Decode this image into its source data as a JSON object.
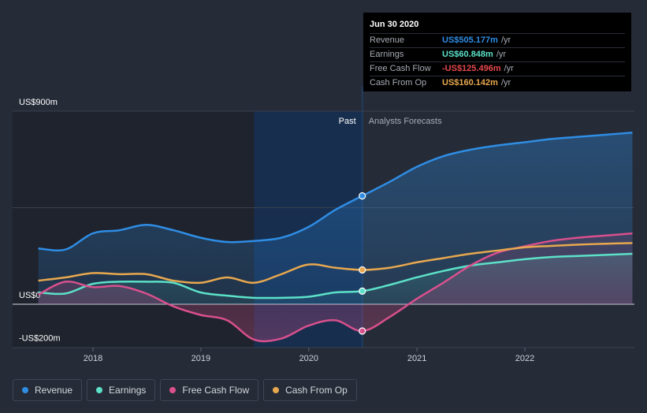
{
  "chart_data": {
    "type": "line",
    "title": "",
    "y_tick_labels": [
      "US$900m",
      "US$0",
      "-US$200m"
    ],
    "ylim": [
      -200,
      900
    ],
    "x_tick_labels": [
      "2018",
      "2019",
      "2020",
      "2021",
      "2022"
    ],
    "divider_labels": {
      "past": "Past",
      "forecast": "Analysts Forecasts"
    },
    "divider_date": "2020-06-30",
    "series": [
      {
        "name": "Revenue",
        "color": "#2f8de4",
        "x": [
          "2017-06-30",
          "2017-09-30",
          "2017-12-31",
          "2018-03-31",
          "2018-06-30",
          "2018-09-30",
          "2018-12-31",
          "2019-03-31",
          "2019-06-30",
          "2019-09-30",
          "2019-12-31",
          "2020-03-31",
          "2020-06-30",
          "2020-09-30",
          "2020-12-31",
          "2021-03-31",
          "2021-06-30",
          "2021-09-30",
          "2021-12-31",
          "2022-03-31",
          "2022-06-30",
          "2022-09-30",
          "2022-12-31"
        ],
        "values": [
          260,
          255,
          330,
          345,
          370,
          345,
          310,
          290,
          295,
          310,
          360,
          440,
          505,
          570,
          640,
          690,
          720,
          740,
          755,
          770,
          780,
          790,
          800
        ]
      },
      {
        "name": "Earnings",
        "color": "#5ce1c8",
        "x": [
          "2017-06-30",
          "2017-09-30",
          "2017-12-31",
          "2018-03-31",
          "2018-06-30",
          "2018-09-30",
          "2018-12-31",
          "2019-03-31",
          "2019-06-30",
          "2019-09-30",
          "2019-12-31",
          "2020-03-31",
          "2020-06-30",
          "2020-09-30",
          "2020-12-31",
          "2021-03-31",
          "2021-06-30",
          "2021-09-30",
          "2021-12-31",
          "2022-03-31",
          "2022-06-30",
          "2022-09-30",
          "2022-12-31"
        ],
        "values": [
          55,
          50,
          95,
          105,
          105,
          100,
          55,
          40,
          30,
          30,
          35,
          55,
          61,
          90,
          125,
          155,
          180,
          195,
          210,
          220,
          225,
          230,
          235
        ]
      },
      {
        "name": "Free Cash Flow",
        "color": "#d9508d",
        "x": [
          "2017-06-30",
          "2017-09-30",
          "2017-12-31",
          "2018-03-31",
          "2018-06-30",
          "2018-09-30",
          "2018-12-31",
          "2019-03-31",
          "2019-06-30",
          "2019-09-30",
          "2019-12-31",
          "2020-03-31",
          "2020-06-30",
          "2020-09-30",
          "2020-12-31",
          "2021-03-31",
          "2021-06-30",
          "2021-09-30",
          "2021-12-31",
          "2022-03-31",
          "2022-06-30",
          "2022-09-30",
          "2022-12-31"
        ],
        "values": [
          45,
          105,
          80,
          85,
          50,
          -10,
          -50,
          -75,
          -165,
          -160,
          -100,
          -75,
          -125,
          -60,
          25,
          100,
          180,
          240,
          270,
          295,
          310,
          320,
          330
        ]
      },
      {
        "name": "Cash From Op",
        "color": "#e8a84f",
        "x": [
          "2017-06-30",
          "2017-09-30",
          "2017-12-31",
          "2018-03-31",
          "2018-06-30",
          "2018-09-30",
          "2018-12-31",
          "2019-03-31",
          "2019-06-30",
          "2019-09-30",
          "2019-12-31",
          "2020-03-31",
          "2020-06-30",
          "2020-09-30",
          "2020-12-31",
          "2021-03-31",
          "2021-06-30",
          "2021-09-30",
          "2021-12-31",
          "2022-03-31",
          "2022-06-30",
          "2022-09-30",
          "2022-12-31"
        ],
        "values": [
          110,
          125,
          145,
          140,
          140,
          110,
          100,
          125,
          100,
          140,
          185,
          170,
          160,
          170,
          195,
          215,
          235,
          250,
          265,
          272,
          278,
          282,
          285
        ]
      }
    ],
    "grid": true,
    "legend_position": "bottom-left"
  },
  "tooltip": {
    "date": "Jun 30 2020",
    "rows": [
      {
        "label": "Revenue",
        "value": "US$505.177m",
        "unit": "/yr",
        "color": "#2f8de4"
      },
      {
        "label": "Earnings",
        "value": "US$60.848m",
        "unit": "/yr",
        "color": "#5ce1c8"
      },
      {
        "label": "Free Cash Flow",
        "value": "-US$125.496m",
        "unit": "/yr",
        "color": "#e5484d"
      },
      {
        "label": "Cash From Op",
        "value": "US$160.142m",
        "unit": "/yr",
        "color": "#e8a84f"
      }
    ]
  },
  "legend": [
    {
      "label": "Revenue",
      "color": "#2f8de4"
    },
    {
      "label": "Earnings",
      "color": "#5ce1c8"
    },
    {
      "label": "Free Cash Flow",
      "color": "#d9508d"
    },
    {
      "label": "Cash From Op",
      "color": "#e8a84f"
    }
  ]
}
